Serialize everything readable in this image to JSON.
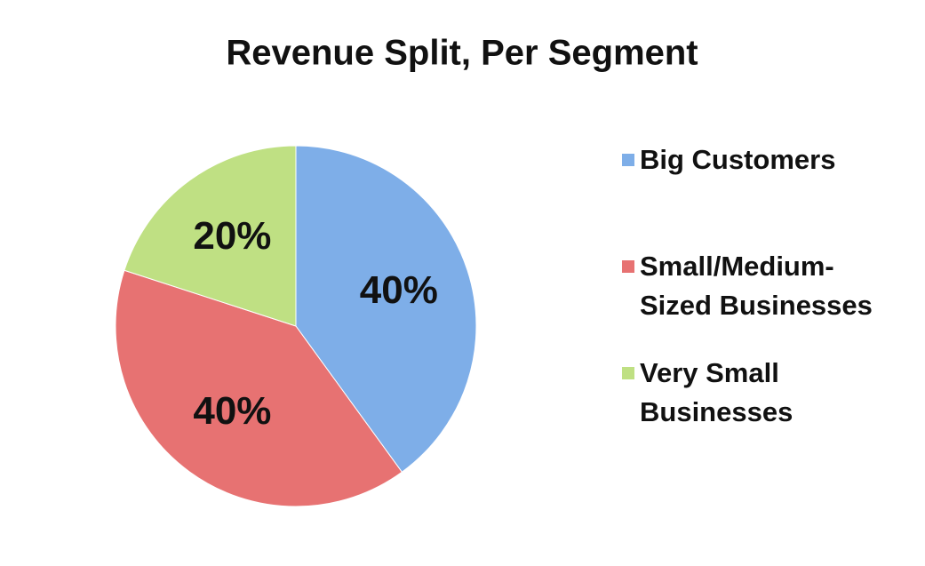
{
  "chart_data": {
    "type": "pie",
    "title": "Revenue Split, Per Segment",
    "categories": [
      "Big Customers",
      "Small/Medium-Sized Businesses",
      "Very Small Businesses"
    ],
    "values": [
      40,
      40,
      20
    ],
    "value_labels": [
      "40%",
      "40%",
      "20%"
    ],
    "colors": [
      "#7eaee8",
      "#e77272",
      "#bfe083"
    ],
    "legend": "right"
  }
}
